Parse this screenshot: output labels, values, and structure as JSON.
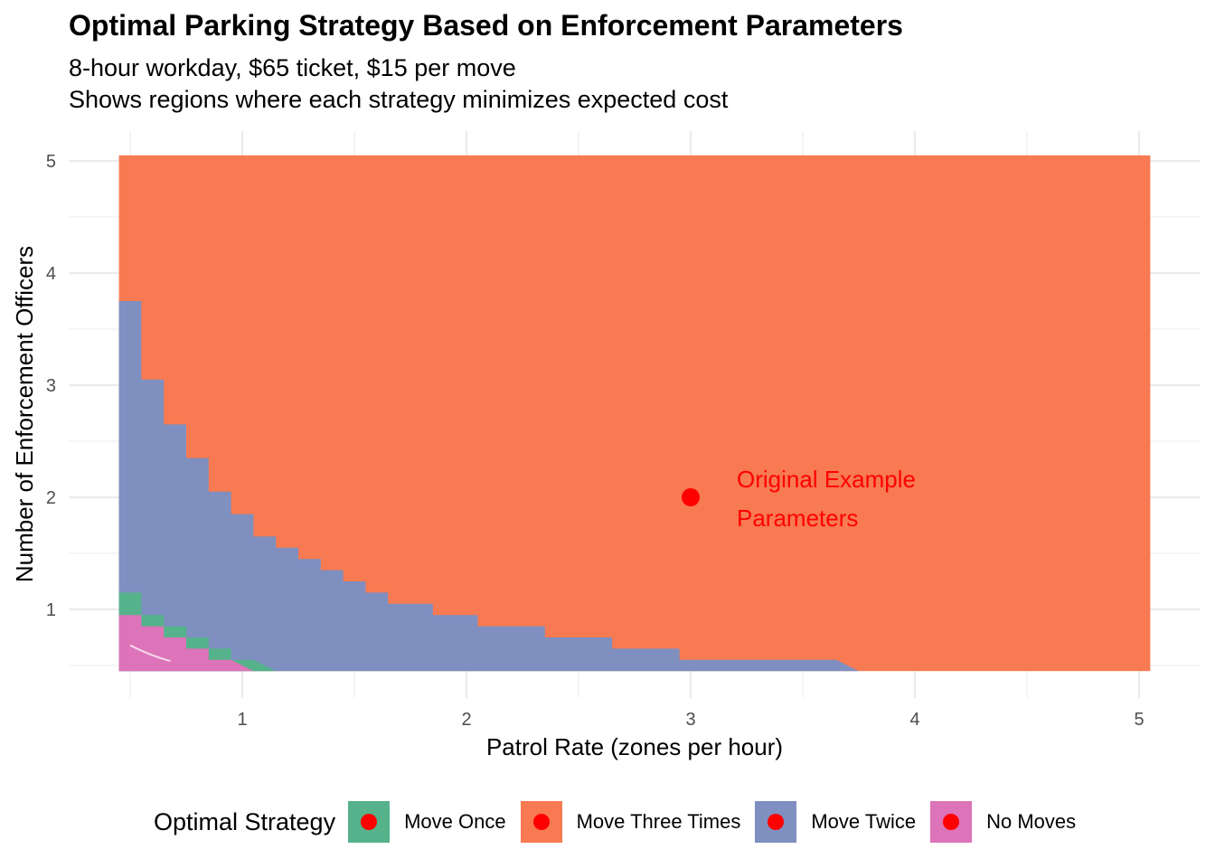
{
  "title": "Optimal Parking Strategy Based on Enforcement Parameters",
  "subtitle_line1": "8-hour workday, $65 ticket, $15 per move",
  "subtitle_line2": "Shows regions where each strategy minimizes expected cost",
  "chart_data": {
    "type": "heatmap",
    "xlabel": "Patrol Rate (zones per hour)",
    "ylabel": "Number of Enforcement Officers",
    "xlim": [
      0.5,
      5.0
    ],
    "ylim": [
      0.5,
      5.0
    ],
    "x_ticks": [
      "1",
      "2",
      "3",
      "4",
      "5"
    ],
    "y_ticks": [
      "1",
      "2",
      "3",
      "4",
      "5"
    ],
    "grid": true,
    "colors": {
      "Move Once": "#55b28b",
      "Move Three Times": "#f77a52",
      "Move Twice": "#7e8fc0",
      "No Moves": "#dd73b8"
    },
    "default_region": "Move Three Times",
    "regions": [
      {
        "strategy": "Move Twice",
        "boundary": [
          [
            0.5,
            3.7
          ],
          [
            0.6,
            3.7
          ],
          [
            0.6,
            3.0
          ],
          [
            0.7,
            3.0
          ],
          [
            0.7,
            2.6
          ],
          [
            0.8,
            2.6
          ],
          [
            0.8,
            2.3
          ],
          [
            0.9,
            2.3
          ],
          [
            0.9,
            2.0
          ],
          [
            1.0,
            2.0
          ],
          [
            1.0,
            1.8
          ],
          [
            1.1,
            1.8
          ],
          [
            1.1,
            1.6
          ],
          [
            1.2,
            1.6
          ],
          [
            1.2,
            1.5
          ],
          [
            1.3,
            1.5
          ],
          [
            1.3,
            1.4
          ],
          [
            1.4,
            1.4
          ],
          [
            1.4,
            1.3
          ],
          [
            1.5,
            1.3
          ],
          [
            1.5,
            1.2
          ],
          [
            1.6,
            1.2
          ],
          [
            1.6,
            1.1
          ],
          [
            1.7,
            1.1
          ],
          [
            1.7,
            1.0
          ],
          [
            1.9,
            1.0
          ],
          [
            1.9,
            0.9
          ],
          [
            2.1,
            0.9
          ],
          [
            2.1,
            0.8
          ],
          [
            2.4,
            0.8
          ],
          [
            2.4,
            0.7
          ],
          [
            2.7,
            0.7
          ],
          [
            2.7,
            0.6
          ],
          [
            3.0,
            0.6
          ],
          [
            3.0,
            0.5
          ],
          [
            3.7,
            0.5
          ]
        ]
      },
      {
        "strategy": "Move Once",
        "boundary": [
          [
            0.5,
            1.1
          ],
          [
            0.6,
            1.1
          ],
          [
            0.6,
            0.9
          ],
          [
            0.7,
            0.9
          ],
          [
            0.7,
            0.8
          ],
          [
            0.8,
            0.8
          ],
          [
            0.8,
            0.7
          ],
          [
            0.9,
            0.7
          ],
          [
            0.9,
            0.6
          ],
          [
            1.0,
            0.6
          ],
          [
            1.0,
            0.5
          ],
          [
            1.1,
            0.5
          ]
        ]
      },
      {
        "strategy": "No Moves",
        "boundary": [
          [
            0.5,
            0.9
          ],
          [
            0.6,
            0.9
          ],
          [
            0.6,
            0.8
          ],
          [
            0.7,
            0.8
          ],
          [
            0.7,
            0.7
          ],
          [
            0.8,
            0.7
          ],
          [
            0.8,
            0.6
          ],
          [
            0.9,
            0.6
          ],
          [
            0.9,
            0.5
          ],
          [
            1.0,
            0.5
          ]
        ]
      }
    ],
    "highlight_point": {
      "x": 3,
      "y": 2,
      "label_line1": "Original Example",
      "label_line2": "Parameters",
      "color": "#ff0000"
    },
    "legend": {
      "title": "Optimal Strategy",
      "position": "bottom",
      "entries": [
        "Move Once",
        "Move Three Times",
        "Move Twice",
        "No Moves"
      ]
    }
  }
}
